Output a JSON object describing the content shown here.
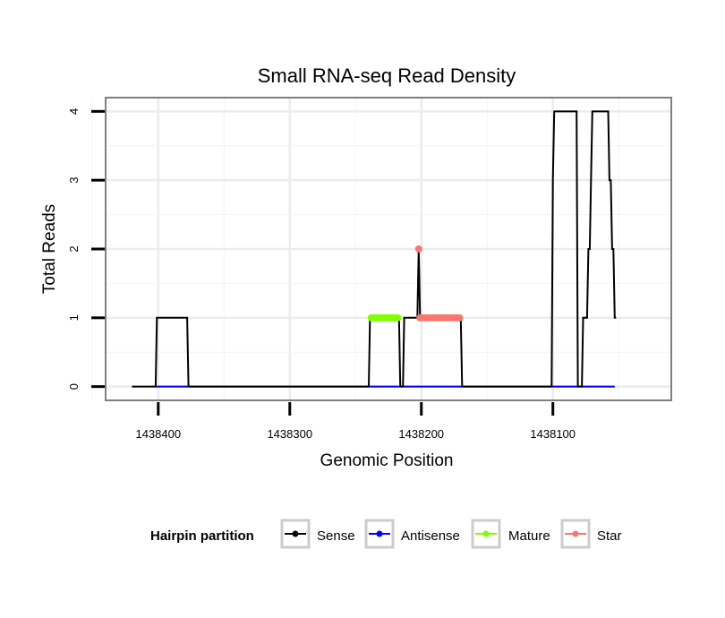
{
  "chart_data": {
    "type": "line",
    "title": "Small RNA-seq Read Density",
    "xlabel": "Genomic Position",
    "ylabel": "Total Reads",
    "x_reversed": true,
    "xlim": [
      1438440,
      1438010
    ],
    "ylim": [
      -0.2,
      4.2
    ],
    "x_ticks": [
      1438400,
      1438300,
      1438200,
      1438100
    ],
    "x_tick_labels": [
      "1438400",
      "1438300",
      "1438200",
      "1438100"
    ],
    "y_ticks": [
      0,
      1,
      2,
      3,
      4
    ],
    "y_tick_labels": [
      "0",
      "1",
      "2",
      "3",
      "4"
    ],
    "grid": true,
    "legend": {
      "title": "Hairpin partition",
      "position": "bottom",
      "entries": [
        "Sense",
        "Antisense",
        "Mature",
        "Star"
      ]
    },
    "series": [
      {
        "name": "Sense",
        "color": "#000000",
        "marker": "line",
        "points": [
          [
            1438420,
            0
          ],
          [
            1438402,
            0
          ],
          [
            1438401,
            1
          ],
          [
            1438378,
            1
          ],
          [
            1438377,
            0
          ],
          [
            1438240,
            0
          ],
          [
            1438239,
            1
          ],
          [
            1438217,
            1
          ],
          [
            1438216,
            0
          ],
          [
            1438214,
            0
          ],
          [
            1438213,
            1
          ],
          [
            1438203,
            1
          ],
          [
            1438202,
            2
          ],
          [
            1438201,
            1
          ],
          [
            1438170,
            1
          ],
          [
            1438169,
            0
          ],
          [
            1438101,
            0
          ],
          [
            1438100,
            3
          ],
          [
            1438099,
            4
          ],
          [
            1438082,
            4
          ],
          [
            1438081,
            0
          ],
          [
            1438078,
            0
          ],
          [
            1438077,
            1
          ],
          [
            1438074,
            1
          ],
          [
            1438073,
            2
          ],
          [
            1438072,
            2
          ],
          [
            1438071,
            3
          ],
          [
            1438070,
            4
          ],
          [
            1438058,
            4
          ],
          [
            1438057,
            3
          ],
          [
            1438056,
            3
          ],
          [
            1438055,
            2
          ],
          [
            1438054,
            2
          ],
          [
            1438053,
            1
          ],
          [
            1438052,
            1
          ]
        ]
      },
      {
        "name": "Antisense",
        "color": "#0000ff",
        "marker": "line",
        "points": [
          [
            1438402,
            0
          ],
          [
            1438053,
            0
          ]
        ]
      },
      {
        "name": "Mature",
        "color": "#7fff00",
        "marker": "dots",
        "points": [
          [
            1438238,
            1
          ],
          [
            1438236,
            1
          ],
          [
            1438234,
            1
          ],
          [
            1438232,
            1
          ],
          [
            1438230,
            1
          ],
          [
            1438228,
            1
          ],
          [
            1438226,
            1
          ],
          [
            1438224,
            1
          ],
          [
            1438222,
            1
          ],
          [
            1438220,
            1
          ],
          [
            1438218,
            1
          ]
        ]
      },
      {
        "name": "Star",
        "color": "#f8766d",
        "marker": "dots",
        "points": [
          [
            1438202,
            2
          ],
          [
            1438201,
            1
          ],
          [
            1438199,
            1
          ],
          [
            1438197,
            1
          ],
          [
            1438195,
            1
          ],
          [
            1438193,
            1
          ],
          [
            1438191,
            1
          ],
          [
            1438189,
            1
          ],
          [
            1438187,
            1
          ],
          [
            1438185,
            1
          ],
          [
            1438183,
            1
          ],
          [
            1438181,
            1
          ],
          [
            1438179,
            1
          ],
          [
            1438177,
            1
          ],
          [
            1438175,
            1
          ],
          [
            1438173,
            1
          ],
          [
            1438171,
            1
          ]
        ]
      }
    ]
  }
}
